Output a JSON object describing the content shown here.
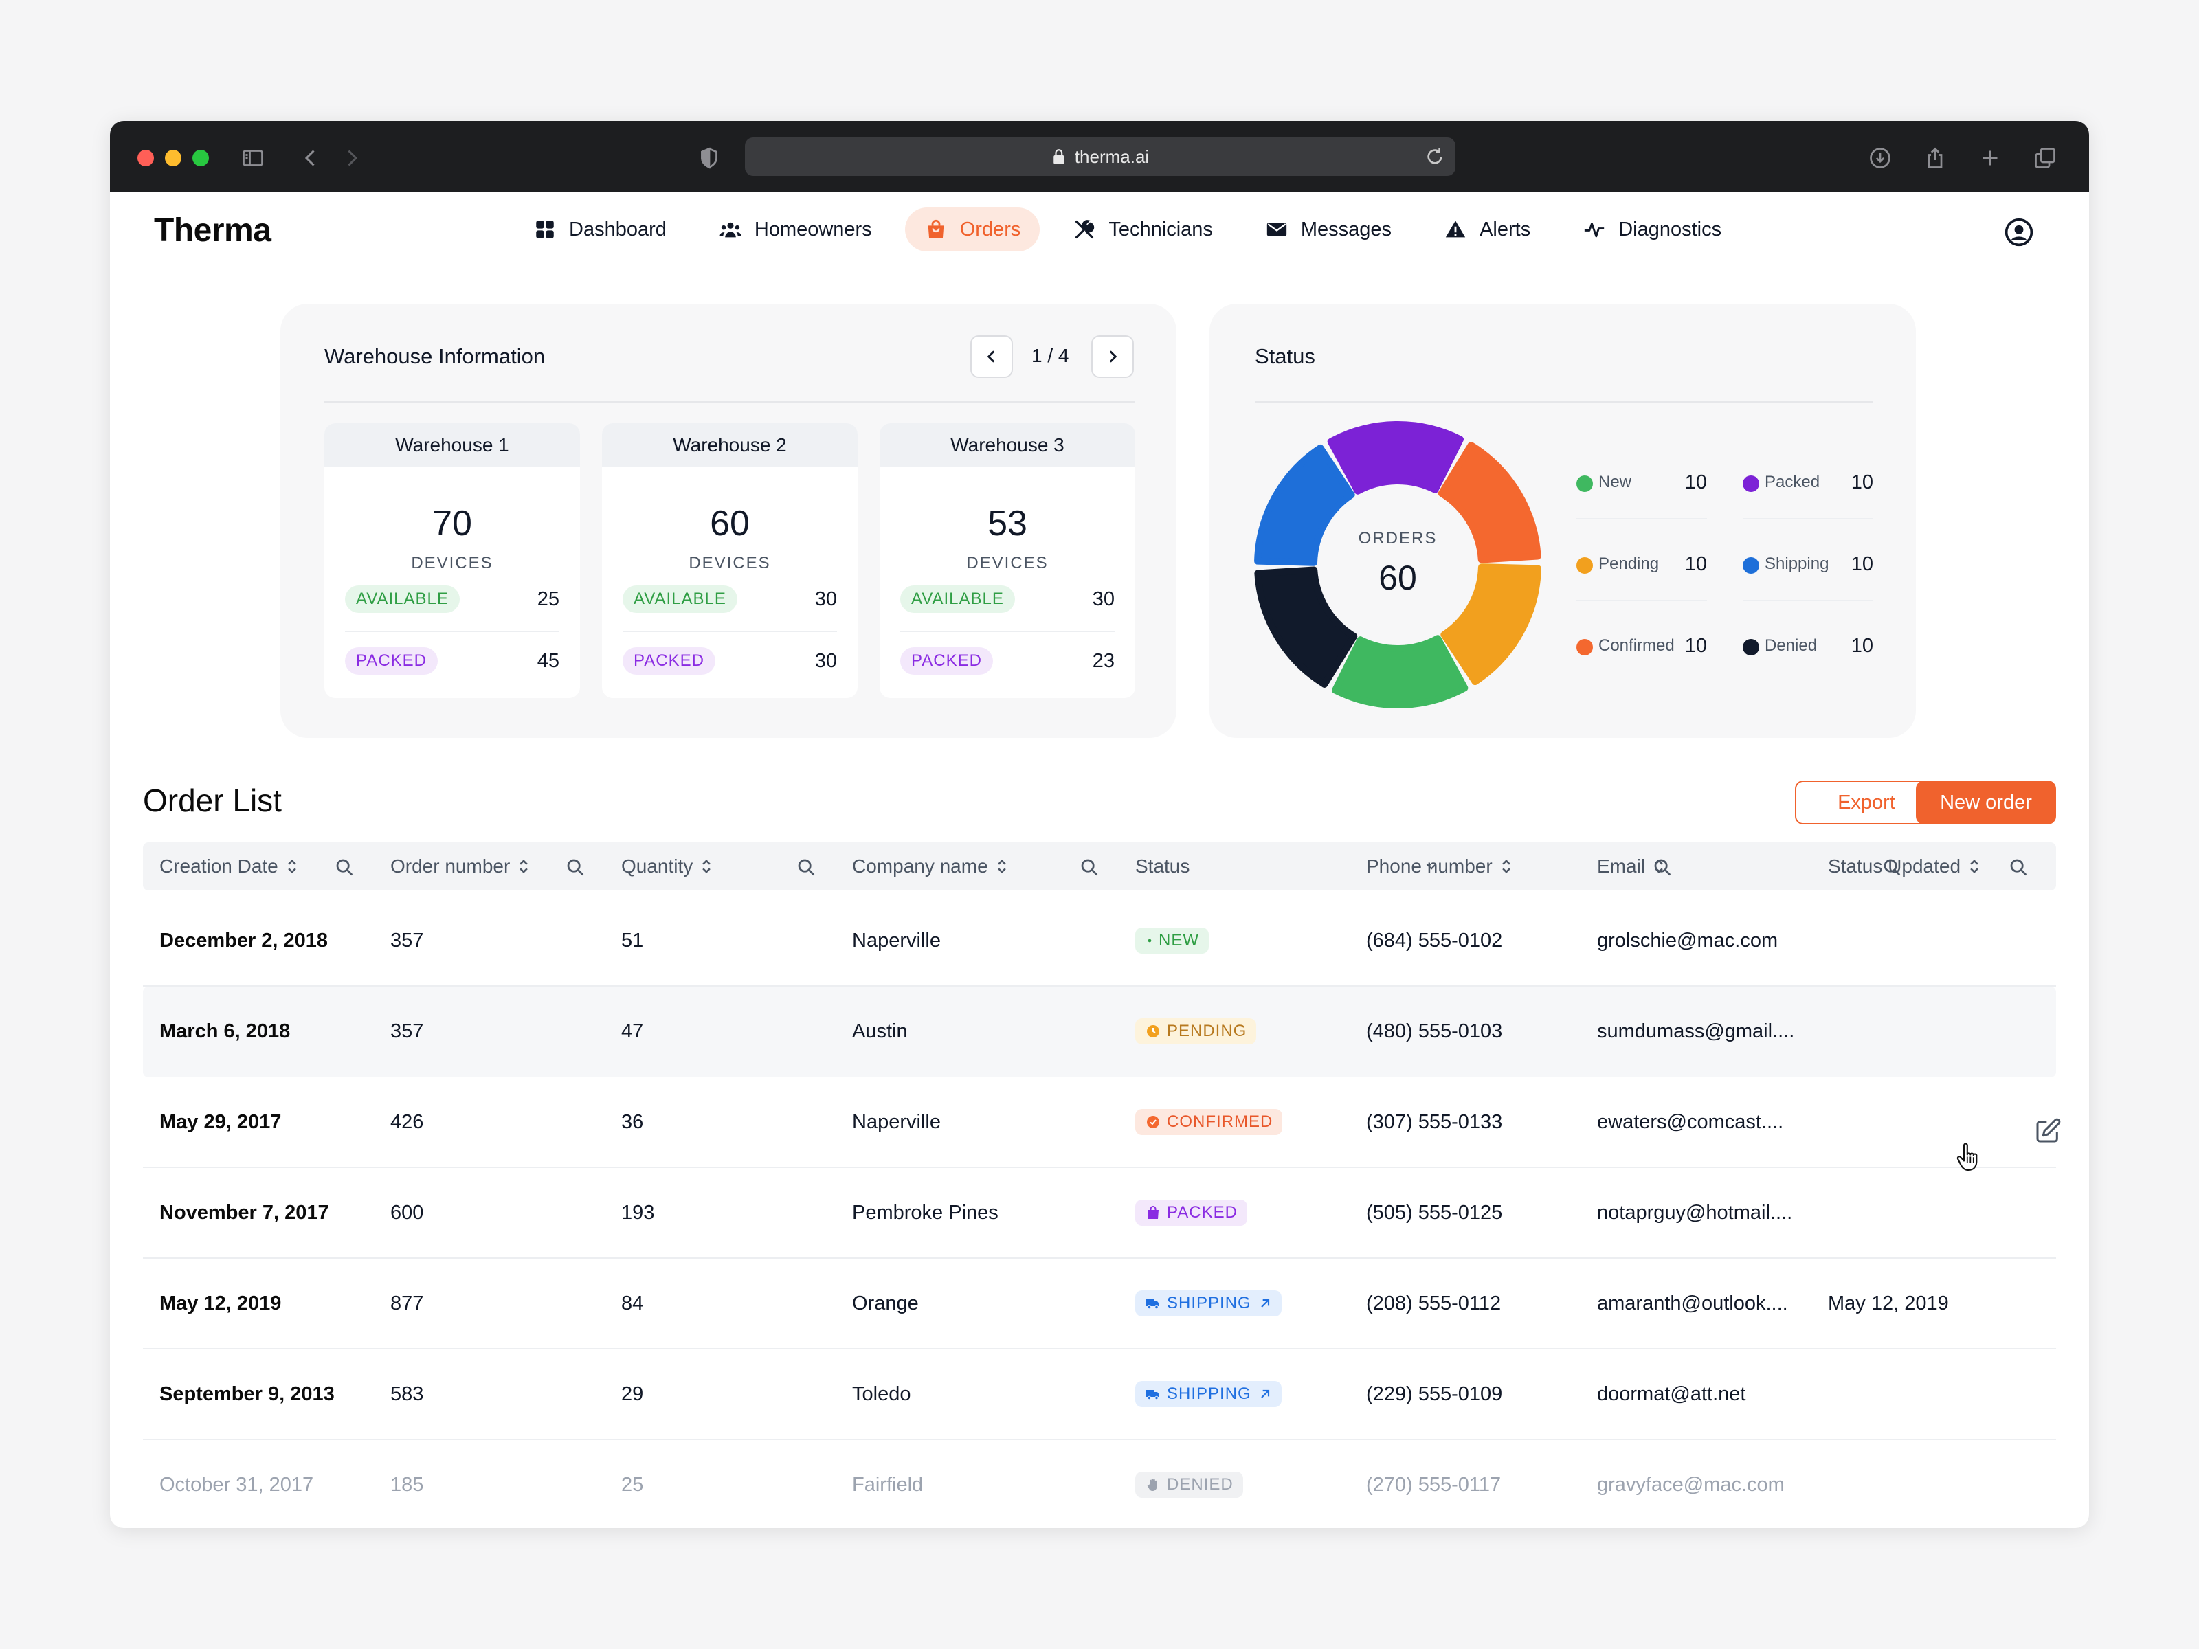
{
  "browser": {
    "url": "therma.ai",
    "traffic_lights": [
      "#ff5f57",
      "#febc2e",
      "#28c840"
    ]
  },
  "app": {
    "logo": "Therma",
    "accent": "#f0622d",
    "nav": [
      {
        "label": "Dashboard",
        "icon": "grid-icon",
        "active": false
      },
      {
        "label": "Homeowners",
        "icon": "users-icon",
        "active": false
      },
      {
        "label": "Orders",
        "icon": "bag-icon",
        "active": true
      },
      {
        "label": "Technicians",
        "icon": "tools-icon",
        "active": false
      },
      {
        "label": "Messages",
        "icon": "envelope-icon",
        "active": false
      },
      {
        "label": "Alerts",
        "icon": "warning-icon",
        "active": false
      },
      {
        "label": "Diagnostics",
        "icon": "pulse-icon",
        "active": false
      }
    ]
  },
  "warehouse": {
    "title": "Warehouse Information",
    "pager": "1 / 4",
    "unit": "DEVICES",
    "available_label": "AVAILABLE",
    "packed_label": "PACKED",
    "items": [
      {
        "name": "Warehouse 1",
        "devices": "70",
        "available": "25",
        "packed": "45"
      },
      {
        "name": "Warehouse 2",
        "devices": "60",
        "available": "30",
        "packed": "30"
      },
      {
        "name": "Warehouse 3",
        "devices": "53",
        "available": "30",
        "packed": "23"
      }
    ]
  },
  "status": {
    "title": "Status",
    "center_label": "ORDERS",
    "center_value": "60",
    "legend": [
      {
        "name": "New",
        "value": "10",
        "color": "#3fb860"
      },
      {
        "name": "Packed",
        "value": "10",
        "color": "#7c22d6"
      },
      {
        "name": "Pending",
        "value": "10",
        "color": "#f2a01e"
      },
      {
        "name": "Shipping",
        "value": "10",
        "color": "#1e6fd9"
      },
      {
        "name": "Confirmed",
        "value": "10",
        "color": "#f4682f"
      },
      {
        "name": "Denied",
        "value": "10",
        "color": "#111a2b"
      }
    ]
  },
  "chart_data": {
    "type": "pie",
    "categories": [
      "Packed",
      "Confirmed",
      "Pending",
      "New",
      "Denied",
      "Shipping"
    ],
    "values": [
      10,
      10,
      10,
      10,
      10,
      10
    ],
    "colors": [
      "#7c22d6",
      "#f4682f",
      "#f2a01e",
      "#3fb860",
      "#111a2b",
      "#1e6fd9"
    ],
    "title": "Status"
  },
  "orders": {
    "title": "Order List",
    "export_label": "Export",
    "new_label": "New order",
    "columns": [
      "Creation Date",
      "Order number",
      "Quantity",
      "Company name",
      "Status",
      "Phone number",
      "Email",
      "Status Updated"
    ],
    "rows": [
      {
        "date": "December 2, 2018",
        "order": "357",
        "qty": "51",
        "company": "Naperville",
        "status": "NEW",
        "status_type": "new",
        "phone": "(684) 555-0102",
        "email": "grolschie@mac.com",
        "updated": ""
      },
      {
        "date": "March 6, 2018",
        "order": "357",
        "qty": "47",
        "company": "Austin",
        "status": "PENDING",
        "status_type": "pending",
        "phone": "(480) 555-0103",
        "email": "sumdumass@gmail....",
        "updated": ""
      },
      {
        "date": "May 29, 2017",
        "order": "426",
        "qty": "36",
        "company": "Naperville",
        "status": "CONFIRMED",
        "status_type": "confirmed",
        "phone": "(307) 555-0133",
        "email": "ewaters@comcast....",
        "updated": ""
      },
      {
        "date": "November 7, 2017",
        "order": "600",
        "qty": "193",
        "company": "Pembroke Pines",
        "status": "PACKED",
        "status_type": "packed",
        "phone": "(505) 555-0125",
        "email": "notaprguy@hotmail....",
        "updated": ""
      },
      {
        "date": "May 12, 2019",
        "order": "877",
        "qty": "84",
        "company": "Orange",
        "status": "SHIPPING",
        "status_type": "shipping",
        "phone": "(208) 555-0112",
        "email": "amaranth@outlook....",
        "updated": "May 12, 2019"
      },
      {
        "date": "September 9, 2013",
        "order": "583",
        "qty": "29",
        "company": "Toledo",
        "status": "SHIPPING",
        "status_type": "shipping",
        "phone": "(229) 555-0109",
        "email": "doormat@att.net",
        "updated": ""
      },
      {
        "date": "October 31, 2017",
        "order": "185",
        "qty": "25",
        "company": "Fairfield",
        "status": "DENIED",
        "status_type": "denied",
        "phone": "(270) 555-0117",
        "email": "gravyface@mac.com",
        "updated": ""
      }
    ]
  }
}
